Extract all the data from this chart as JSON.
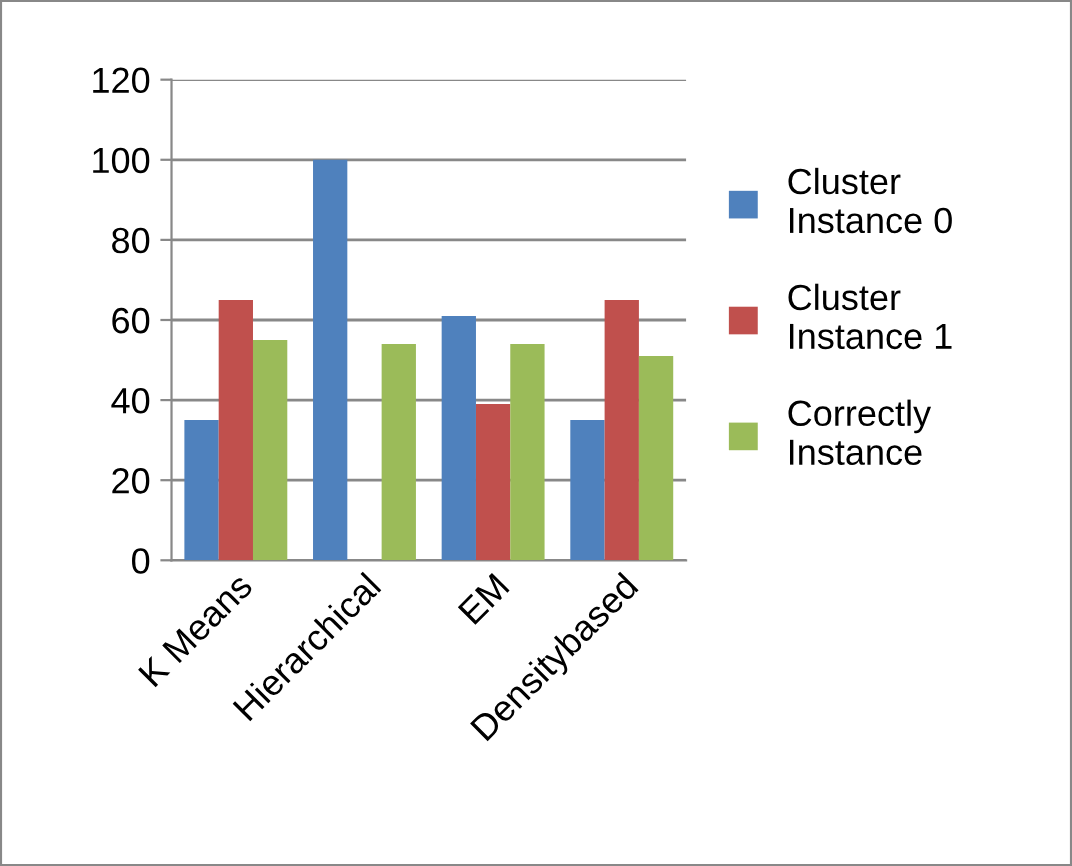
{
  "chart_data": {
    "type": "bar",
    "categories": [
      "K Means",
      "Hierarchical",
      "EM",
      "Densitybased"
    ],
    "series": [
      {
        "name": "Cluster Instance 0",
        "color": "#4f81bd",
        "values": [
          35,
          100,
          61,
          35
        ]
      },
      {
        "name": "Cluster Instance 1",
        "color": "#c0504d",
        "values": [
          65,
          0,
          39,
          65
        ]
      },
      {
        "name": "Correctly Instance",
        "color": "#9bbb59",
        "values": [
          55,
          54,
          54,
          51
        ]
      }
    ],
    "ylim": [
      0,
      120
    ],
    "yticks": [
      0,
      20,
      40,
      60,
      80,
      100,
      120
    ],
    "grid": "y",
    "legend": "right"
  }
}
